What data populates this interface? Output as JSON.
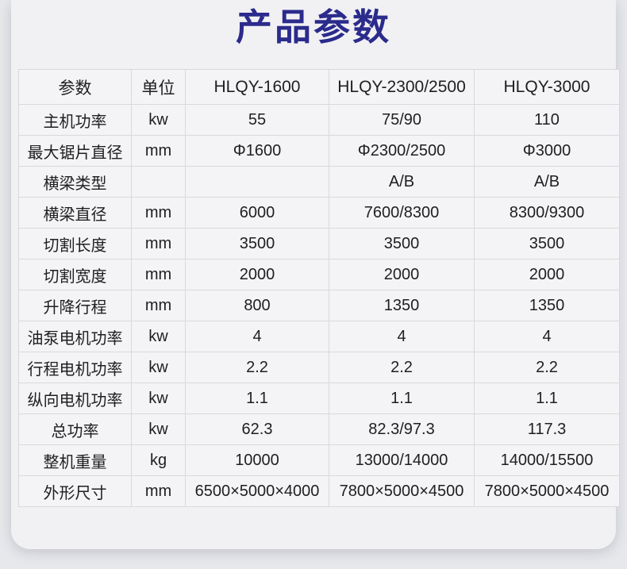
{
  "title": "产品参数",
  "colors": {
    "title_text": "#2b2b8c",
    "page_background": "#e7e8ec",
    "card_background": "#f1f1f4",
    "table_border": "#d9d9dd",
    "body_text": "#1f1f22"
  },
  "table": {
    "headers": [
      "参数",
      "单位",
      "HLQY-1600",
      "HLQY-2300/2500",
      "HLQY-3000"
    ],
    "rows": [
      {
        "param": "主机功率",
        "unit": "kw",
        "values": [
          "55",
          "75/90",
          "110"
        ]
      },
      {
        "param": "最大锯片直径",
        "unit": "mm",
        "values": [
          "Φ1600",
          "Φ2300/2500",
          "Φ3000"
        ]
      },
      {
        "param": "横梁类型",
        "unit": "",
        "values": [
          "",
          "A/B",
          "A/B"
        ]
      },
      {
        "param": "横梁直径",
        "unit": "mm",
        "values": [
          "6000",
          "7600/8300",
          "8300/9300"
        ]
      },
      {
        "param": "切割长度",
        "unit": "mm",
        "values": [
          "3500",
          "3500",
          "3500"
        ]
      },
      {
        "param": "切割宽度",
        "unit": "mm",
        "values": [
          "2000",
          "2000",
          "2000"
        ]
      },
      {
        "param": "升降行程",
        "unit": "mm",
        "values": [
          "800",
          "1350",
          "1350"
        ]
      },
      {
        "param": "油泵电机功率",
        "unit": "kw",
        "values": [
          "4",
          "4",
          "4"
        ]
      },
      {
        "param": "行程电机功率",
        "unit": "kw",
        "values": [
          "2.2",
          "2.2",
          "2.2"
        ]
      },
      {
        "param": "纵向电机功率",
        "unit": "kw",
        "values": [
          "1.1",
          "1.1",
          "1.1"
        ]
      },
      {
        "param": "总功率",
        "unit": "kw",
        "values": [
          "62.3",
          "82.3/97.3",
          "117.3"
        ]
      },
      {
        "param": "整机重量",
        "unit": "kg",
        "values": [
          "10000",
          "13000/14000",
          "14000/15500"
        ]
      },
      {
        "param": "外形尺寸",
        "unit": "mm",
        "values": [
          "6500×5000×4000",
          "7800×5000×4500",
          "7800×5000×4500"
        ]
      }
    ]
  }
}
